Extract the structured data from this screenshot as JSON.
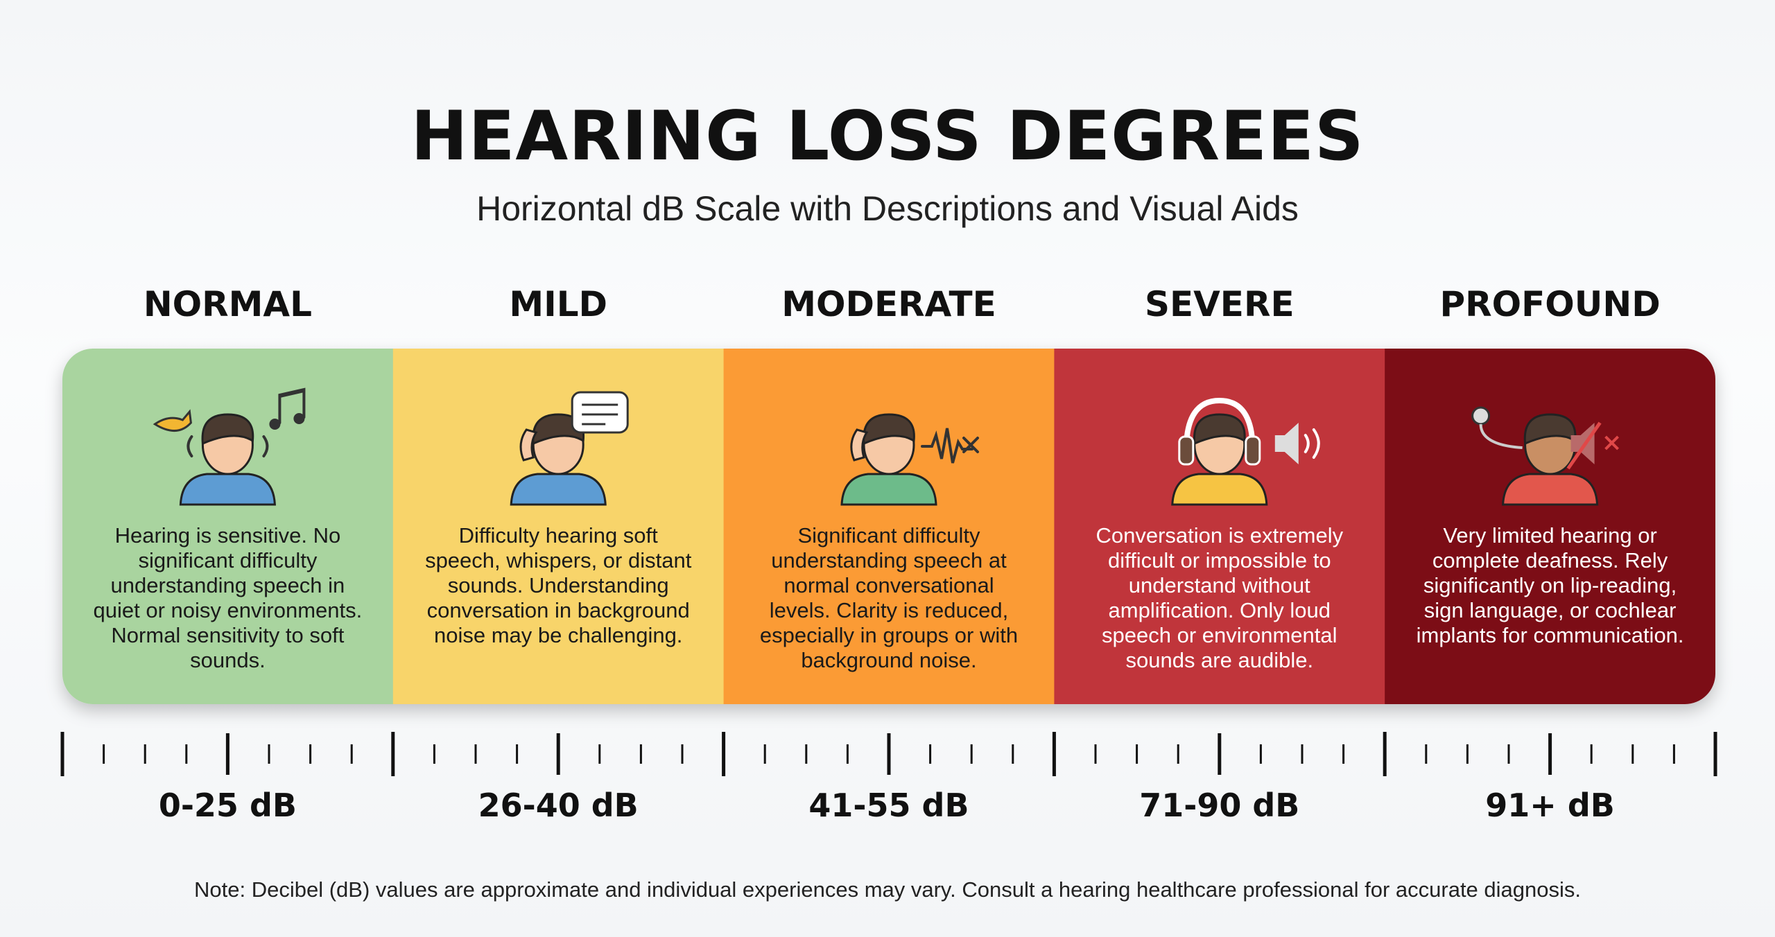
{
  "header": {
    "title": "HEARING LOSS DEGREES",
    "subtitle": "Horizontal dB Scale with Descriptions and Visual Aids"
  },
  "levels": [
    {
      "name": "NORMAL",
      "description": "Hearing is sensitive. No significant difficulty understanding speech in quiet or noisy environments. Normal sensitivity to soft sounds.",
      "range": "0-25 dB"
    },
    {
      "name": "MILD",
      "description": "Difficulty hearing soft speech, whispers, or distant sounds. Understanding conversation in background noise may be challenging.",
      "range": "26-40 dB"
    },
    {
      "name": "MODERATE",
      "description": "Significant difficulty understanding speech at normal conversational levels. Clarity is reduced, especially in groups or with background noise.",
      "range": "41-55 dB"
    },
    {
      "name": "SEVERE",
      "description": "Conversation is extremely difficult or impossible to understand without amplification. Only loud speech or environmental sounds are audible.",
      "range": "71-90 dB"
    },
    {
      "name": "PROFOUND",
      "description": "Very limited hearing or complete deafness. Rely significantly on lip-reading, sign language, or cochlear implants for communication.",
      "range": "91+ dB"
    }
  ],
  "note": "Note: Decibel (dB) values are approximate and individual experiences may vary. Consult a hearing healthcare professional for accurate diagnosis."
}
